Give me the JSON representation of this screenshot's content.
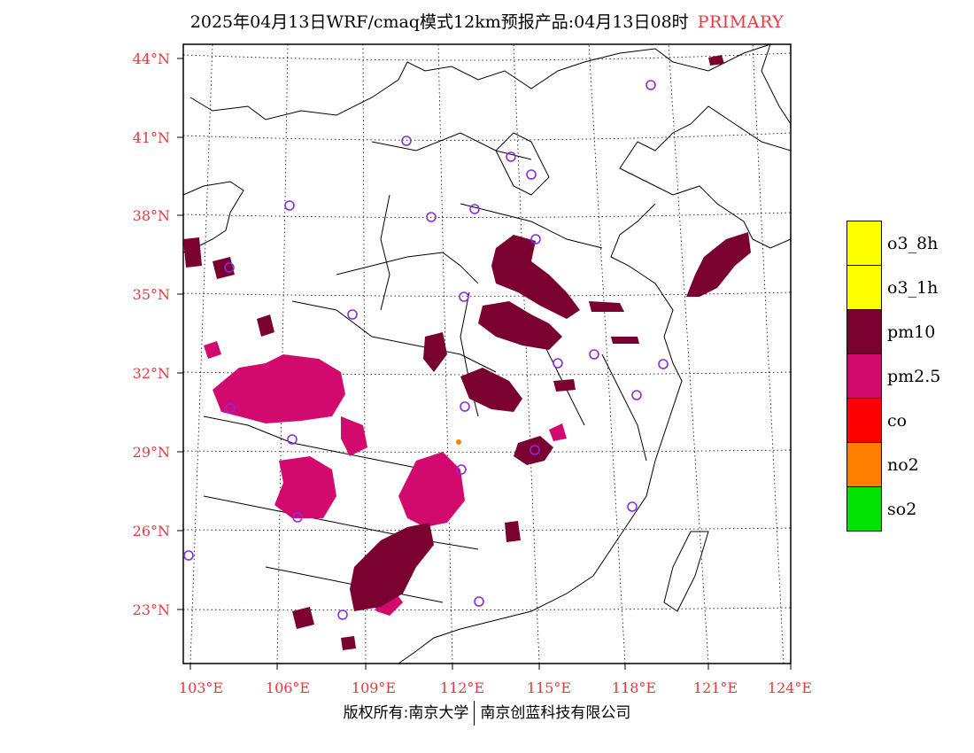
{
  "title": {
    "main": "2025年04月13日WRF/cmaq模式12km预报产品:04月13日08时",
    "tag": "PRIMARY"
  },
  "axes": {
    "lat_labels": [
      "44°N",
      "41°N",
      "38°N",
      "35°N",
      "32°N",
      "29°N",
      "26°N",
      "23°N"
    ],
    "lon_labels": [
      "103°E",
      "106°E",
      "109°E",
      "112°E",
      "115°E",
      "118°E",
      "121°E",
      "124°E"
    ]
  },
  "legend": {
    "items": [
      {
        "label": "o3_8h",
        "color": "#ffff00"
      },
      {
        "label": "o3_1h",
        "color": "#ffff00"
      },
      {
        "label": "pm10",
        "color": "#7a0030"
      },
      {
        "label": "pm2.5",
        "color": "#d20a6e"
      },
      {
        "label": "co",
        "color": "#ff0000"
      },
      {
        "label": "no2",
        "color": "#ff7f00"
      },
      {
        "label": "so2",
        "color": "#00e100"
      }
    ]
  },
  "colors": {
    "pm10": "#7a0030",
    "pm25": "#d20a6e",
    "axis_label": "#e8383d",
    "station_marker": "#8a2be2"
  },
  "footer": {
    "left": "版权所有:南京大学",
    "right": "南京创蓝科技有限公司"
  }
}
